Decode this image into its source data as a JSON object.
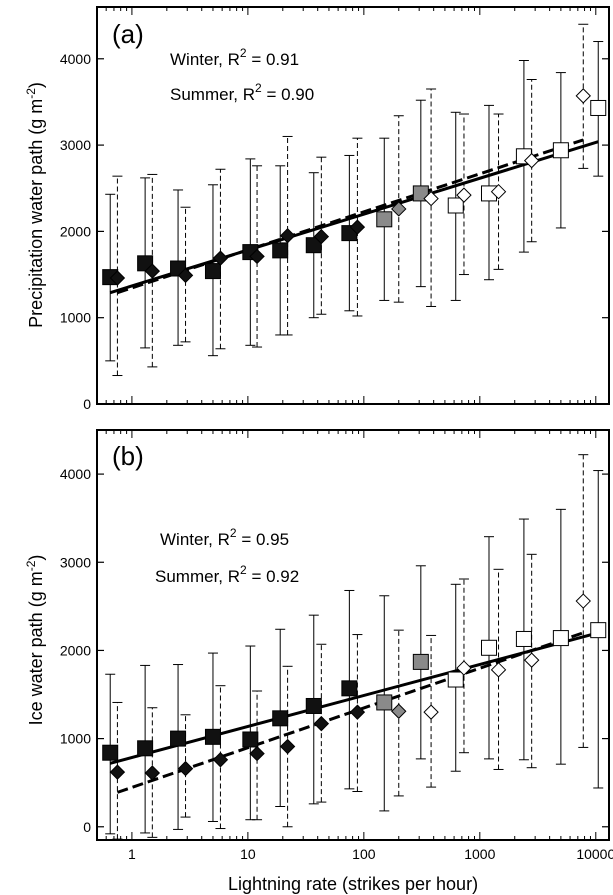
{
  "chart_data": [
    {
      "type": "scatter",
      "panel_label": "(a)",
      "ylabel": "Precipitation water path",
      "ylabel_unit": "(g m",
      "ylabel_unit_exp": "-2",
      "ylabel_unit_close": ")",
      "xscale": "log",
      "xlim": [
        0.5,
        13000
      ],
      "ylim": [
        0,
        4600
      ],
      "yticks": [
        0,
        1000,
        2000,
        3000,
        4000
      ],
      "ytick_labels": [
        "0",
        "1000",
        "2000",
        "3000",
        "4000"
      ],
      "x_tick_labels_visible": false,
      "stats": [
        {
          "season": "Winter",
          "prefix": "Winter, R",
          "exp": "2",
          "suffix": " = 0.91"
        },
        {
          "season": "Summer",
          "prefix": "Summer, R",
          "exp": "2",
          "suffix": " = 0.90"
        }
      ],
      "series": [
        {
          "name": "Winter",
          "marker": "square",
          "error_style": "solid",
          "points": [
            {
              "x": 0.65,
              "y": 1470,
              "lo": 500,
              "hi": 2430,
              "fill": "#111111"
            },
            {
              "x": 1.3,
              "y": 1630,
              "lo": 650,
              "hi": 2620,
              "fill": "#111111"
            },
            {
              "x": 2.5,
              "y": 1570,
              "lo": 680,
              "hi": 2480,
              "fill": "#111111"
            },
            {
              "x": 5.0,
              "y": 1540,
              "lo": 560,
              "hi": 2540,
              "fill": "#111111"
            },
            {
              "x": 10.5,
              "y": 1760,
              "lo": 680,
              "hi": 2840,
              "fill": "#111111"
            },
            {
              "x": 19.0,
              "y": 1780,
              "lo": 800,
              "hi": 2760,
              "fill": "#111111"
            },
            {
              "x": 37.0,
              "y": 1840,
              "lo": 1000,
              "hi": 2680,
              "fill": "#111111"
            },
            {
              "x": 75.0,
              "y": 1980,
              "lo": 1080,
              "hi": 2880,
              "fill": "#111111"
            },
            {
              "x": 150.0,
              "y": 2140,
              "lo": 1200,
              "hi": 3080,
              "fill": "#8a8a8a"
            },
            {
              "x": 310.0,
              "y": 2440,
              "lo": 1360,
              "hi": 3520,
              "fill": "#8a8a8a"
            },
            {
              "x": 620.0,
              "y": 2300,
              "lo": 1200,
              "hi": 3380,
              "fill": "#ffffff"
            },
            {
              "x": 1200.0,
              "y": 2440,
              "lo": 1440,
              "hi": 3460,
              "fill": "#ffffff"
            },
            {
              "x": 2400.0,
              "y": 2870,
              "lo": 1760,
              "hi": 3980,
              "fill": "#ffffff"
            },
            {
              "x": 5000.0,
              "y": 2940,
              "lo": 2040,
              "hi": 3840,
              "fill": "#ffffff"
            },
            {
              "x": 10500.0,
              "y": 3430,
              "lo": 2640,
              "hi": 4200,
              "fill": "#ffffff"
            }
          ]
        },
        {
          "name": "Summer",
          "marker": "diamond",
          "error_style": "dashed",
          "points": [
            {
              "x": 0.75,
              "y": 1460,
              "lo": 330,
              "hi": 2640,
              "fill": "#111111"
            },
            {
              "x": 1.5,
              "y": 1540,
              "lo": 430,
              "hi": 2660,
              "fill": "#111111"
            },
            {
              "x": 2.9,
              "y": 1490,
              "lo": 720,
              "hi": 2280,
              "fill": "#111111"
            },
            {
              "x": 5.8,
              "y": 1690,
              "lo": 640,
              "hi": 2720,
              "fill": "#111111"
            },
            {
              "x": 12.0,
              "y": 1710,
              "lo": 660,
              "hi": 2760,
              "fill": "#111111"
            },
            {
              "x": 22.0,
              "y": 1950,
              "lo": 800,
              "hi": 3100,
              "fill": "#111111"
            },
            {
              "x": 43.0,
              "y": 1940,
              "lo": 1040,
              "hi": 2860,
              "fill": "#111111"
            },
            {
              "x": 88.0,
              "y": 2050,
              "lo": 1020,
              "hi": 3080,
              "fill": "#111111"
            },
            {
              "x": 200.0,
              "y": 2260,
              "lo": 1180,
              "hi": 3340,
              "fill": "#8a8a8a"
            },
            {
              "x": 380.0,
              "y": 2380,
              "lo": 1130,
              "hi": 3650,
              "fill": "#ffffff"
            },
            {
              "x": 730.0,
              "y": 2420,
              "lo": 1500,
              "hi": 3360,
              "fill": "#ffffff"
            },
            {
              "x": 1450.0,
              "y": 2460,
              "lo": 1560,
              "hi": 3360,
              "fill": "#ffffff"
            },
            {
              "x": 2800.0,
              "y": 2820,
              "lo": 1880,
              "hi": 3760,
              "fill": "#ffffff"
            },
            {
              "x": 7800.0,
              "y": 3570,
              "lo": 2730,
              "hi": 4400,
              "fill": "#ffffff"
            }
          ]
        }
      ],
      "fit_lines": [
        {
          "name": "Winter",
          "style": "solid",
          "x": [
            0.65,
            10500
          ],
          "y": [
            1290,
            3040
          ]
        },
        {
          "name": "Summer",
          "style": "dashed",
          "x": [
            0.75,
            7800
          ],
          "y": [
            1290,
            3060
          ]
        }
      ]
    },
    {
      "type": "scatter",
      "panel_label": "(b)",
      "ylabel": "Ice water path",
      "ylabel_unit": "(g m",
      "ylabel_unit_exp": "-2",
      "ylabel_unit_close": ")",
      "xlabel": "Lightning rate (strikes per hour)",
      "xscale": "log",
      "xlim": [
        0.5,
        13000
      ],
      "ylim": [
        -150,
        4500
      ],
      "yticks": [
        0,
        1000,
        2000,
        3000,
        4000
      ],
      "ytick_labels": [
        "0",
        "1000",
        "2000",
        "3000",
        "4000"
      ],
      "xticks": [
        1,
        10,
        100,
        1000,
        10000
      ],
      "xtick_labels": [
        "1",
        "10",
        "100",
        "1000",
        "10000"
      ],
      "stats": [
        {
          "season": "Winter",
          "prefix": "Winter, R",
          "exp": "2",
          "suffix": " = 0.95"
        },
        {
          "season": "Summer",
          "prefix": "Summer, R",
          "exp": "2",
          "suffix": " = 0.92"
        }
      ],
      "series": [
        {
          "name": "Winter",
          "marker": "square",
          "error_style": "solid",
          "points": [
            {
              "x": 0.65,
              "y": 840,
              "lo": -80,
              "hi": 1730,
              "fill": "#111111"
            },
            {
              "x": 1.3,
              "y": 890,
              "lo": -70,
              "hi": 1830,
              "fill": "#111111"
            },
            {
              "x": 2.5,
              "y": 1000,
              "lo": -30,
              "hi": 1840,
              "fill": "#111111"
            },
            {
              "x": 5.0,
              "y": 1020,
              "lo": 60,
              "hi": 1970,
              "fill": "#111111"
            },
            {
              "x": 10.5,
              "y": 990,
              "lo": 80,
              "hi": 2050,
              "fill": "#111111"
            },
            {
              "x": 19.0,
              "y": 1230,
              "lo": 230,
              "hi": 2240,
              "fill": "#111111"
            },
            {
              "x": 37.0,
              "y": 1370,
              "lo": 260,
              "hi": 2400,
              "fill": "#111111"
            },
            {
              "x": 75.0,
              "y": 1570,
              "lo": 430,
              "hi": 2680,
              "fill": "#111111"
            },
            {
              "x": 150.0,
              "y": 1410,
              "lo": 180,
              "hi": 2620,
              "fill": "#8a8a8a"
            },
            {
              "x": 310.0,
              "y": 1870,
              "lo": 770,
              "hi": 2960,
              "fill": "#8a8a8a"
            },
            {
              "x": 620.0,
              "y": 1670,
              "lo": 630,
              "hi": 2750,
              "fill": "#ffffff"
            },
            {
              "x": 1200.0,
              "y": 2030,
              "lo": 770,
              "hi": 3290,
              "fill": "#ffffff"
            },
            {
              "x": 2400.0,
              "y": 2130,
              "lo": 760,
              "hi": 3490,
              "fill": "#ffffff"
            },
            {
              "x": 5000.0,
              "y": 2140,
              "lo": 710,
              "hi": 3600,
              "fill": "#ffffff"
            },
            {
              "x": 10500.0,
              "y": 2230,
              "lo": 440,
              "hi": 4040,
              "fill": "#ffffff"
            }
          ]
        },
        {
          "name": "Summer",
          "marker": "diamond",
          "error_style": "dashed",
          "points": [
            {
              "x": 0.75,
              "y": 620,
              "lo": -140,
              "hi": 1410,
              "fill": "#111111"
            },
            {
              "x": 1.5,
              "y": 610,
              "lo": -120,
              "hi": 1350,
              "fill": "#111111"
            },
            {
              "x": 2.9,
              "y": 660,
              "lo": 110,
              "hi": 1270,
              "fill": "#111111"
            },
            {
              "x": 5.8,
              "y": 760,
              "lo": -20,
              "hi": 1600,
              "fill": "#111111"
            },
            {
              "x": 12.0,
              "y": 830,
              "lo": 80,
              "hi": 1540,
              "fill": "#111111"
            },
            {
              "x": 22.0,
              "y": 910,
              "lo": 0,
              "hi": 1820,
              "fill": "#111111"
            },
            {
              "x": 43.0,
              "y": 1170,
              "lo": 280,
              "hi": 2070,
              "fill": "#111111"
            },
            {
              "x": 88.0,
              "y": 1300,
              "lo": 400,
              "hi": 2180,
              "fill": "#111111"
            },
            {
              "x": 200.0,
              "y": 1310,
              "lo": 350,
              "hi": 2230,
              "fill": "#8a8a8a"
            },
            {
              "x": 380.0,
              "y": 1300,
              "lo": 450,
              "hi": 2170,
              "fill": "#ffffff"
            },
            {
              "x": 730.0,
              "y": 1800,
              "lo": 840,
              "hi": 2810,
              "fill": "#ffffff"
            },
            {
              "x": 1450.0,
              "y": 1780,
              "lo": 650,
              "hi": 2920,
              "fill": "#ffffff"
            },
            {
              "x": 2800.0,
              "y": 1890,
              "lo": 670,
              "hi": 3090,
              "fill": "#ffffff"
            },
            {
              "x": 7800.0,
              "y": 2560,
              "lo": 900,
              "hi": 4220,
              "fill": "#ffffff"
            }
          ]
        }
      ],
      "fit_lines": [
        {
          "name": "Winter",
          "style": "solid",
          "x": [
            0.65,
            10500
          ],
          "y": [
            720,
            2200
          ]
        },
        {
          "name": "Summer",
          "style": "dashed",
          "x": [
            0.75,
            7800
          ],
          "y": [
            390,
            2200
          ]
        }
      ]
    }
  ]
}
